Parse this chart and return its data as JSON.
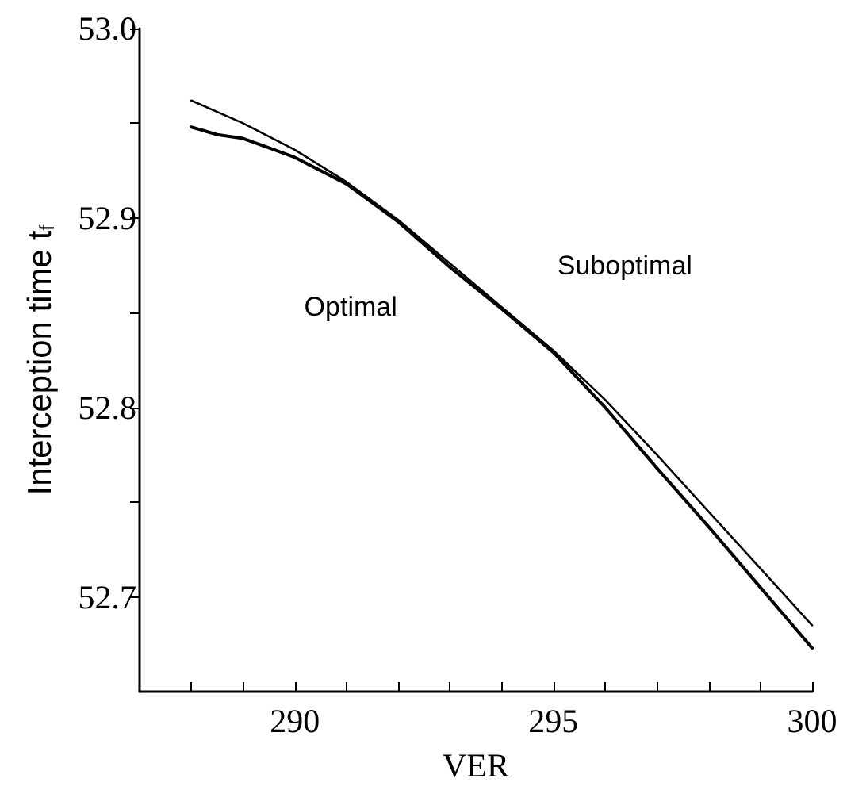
{
  "chart_data": {
    "type": "line",
    "xlabel": "VER",
    "ylabel": "Interception time t$_{f}$",
    "xlim": [
      287,
      300
    ],
    "ylim": [
      52.65,
      53.0
    ],
    "xticks": [
      {
        "value": 288,
        "label": null
      },
      {
        "value": 289,
        "label": null
      },
      290,
      {
        "value": 291,
        "label": null
      },
      {
        "value": 292,
        "label": null
      },
      {
        "value": 293,
        "label": null
      },
      {
        "value": 294,
        "label": null
      },
      295,
      {
        "value": 296,
        "label": null
      },
      {
        "value": 297,
        "label": null
      },
      {
        "value": 298,
        "label": null
      },
      {
        "value": 299,
        "label": null
      },
      300
    ],
    "yticks": [
      52.7,
      {
        "value": 52.75,
        "label": null
      },
      52.8,
      {
        "value": 52.85,
        "label": null
      },
      52.9,
      {
        "value": 52.95,
        "label": null
      },
      {
        "value": 53.0,
        "label": "53.0"
      }
    ],
    "grid": false,
    "legend": false,
    "marker": "none",
    "line_style": "solid",
    "series": [
      {
        "name": "Optimal",
        "color": "#000000",
        "x": [
          288,
          288.5,
          289,
          289.5,
          290,
          291,
          292,
          293,
          294,
          295,
          296,
          297,
          298,
          299,
          300
        ],
        "values": [
          52.948,
          52.944,
          52.942,
          52.937,
          52.932,
          52.918,
          52.898,
          52.874,
          52.852,
          52.829,
          52.8,
          52.768,
          52.737,
          52.705,
          52.673
        ]
      },
      {
        "name": "Suboptimal",
        "color": "#000000",
        "x": [
          288,
          289,
          290,
          291,
          292,
          293,
          294,
          295,
          296,
          297,
          298,
          299,
          300
        ],
        "values": [
          52.962,
          52.95,
          52.936,
          52.919,
          52.899,
          52.876,
          52.853,
          52.83,
          52.804,
          52.775,
          52.745,
          52.715,
          52.685
        ]
      }
    ]
  }
}
